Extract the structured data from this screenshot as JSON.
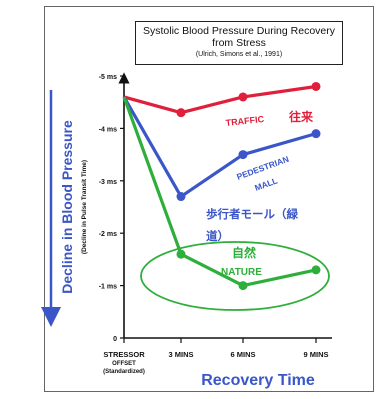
{
  "chart_data": {
    "type": "line",
    "title": "Systolic Blood Pressure During Recovery from Stress",
    "citation": "(Ulrich, Simons et al., 1991)",
    "ylabel": "Decline in Blood Pressure",
    "ylabel_sub": "(Decline in Pulse Transit Time)",
    "xlabel": "Recovery Time",
    "categories": [
      "STRESSOR",
      "3 MINS",
      "6 MINS",
      "9 MINS"
    ],
    "stressor_sub": [
      "OFFSET",
      "(Standardized)"
    ],
    "yticks": [
      {
        "value": 0,
        "label": "0"
      },
      {
        "value": 1,
        "label": "-1 ms"
      },
      {
        "value": 2,
        "label": "-2 ms"
      },
      {
        "value": 3,
        "label": "-3 ms"
      },
      {
        "value": 4,
        "label": "-4 ms"
      },
      {
        "value": 5,
        "label": "-5 ms"
      }
    ],
    "ylim": [
      0,
      5
    ],
    "series": [
      {
        "name": "TRAFFIC",
        "name_jp": "往来",
        "color": "#e0203a",
        "values": [
          4.6,
          4.3,
          4.6,
          4.8
        ]
      },
      {
        "name": "PEDESTRIAN",
        "name_line2": "MALL",
        "name_jp": "歩行者モール（緑",
        "name_jp_line2": "道）",
        "color": "#3a56c8",
        "values": [
          4.6,
          2.7,
          3.5,
          3.9
        ]
      },
      {
        "name": "NATURE",
        "name_jp": "自然",
        "color": "#2eae3a",
        "values": [
          4.6,
          1.6,
          1.0,
          1.3
        ]
      }
    ]
  }
}
